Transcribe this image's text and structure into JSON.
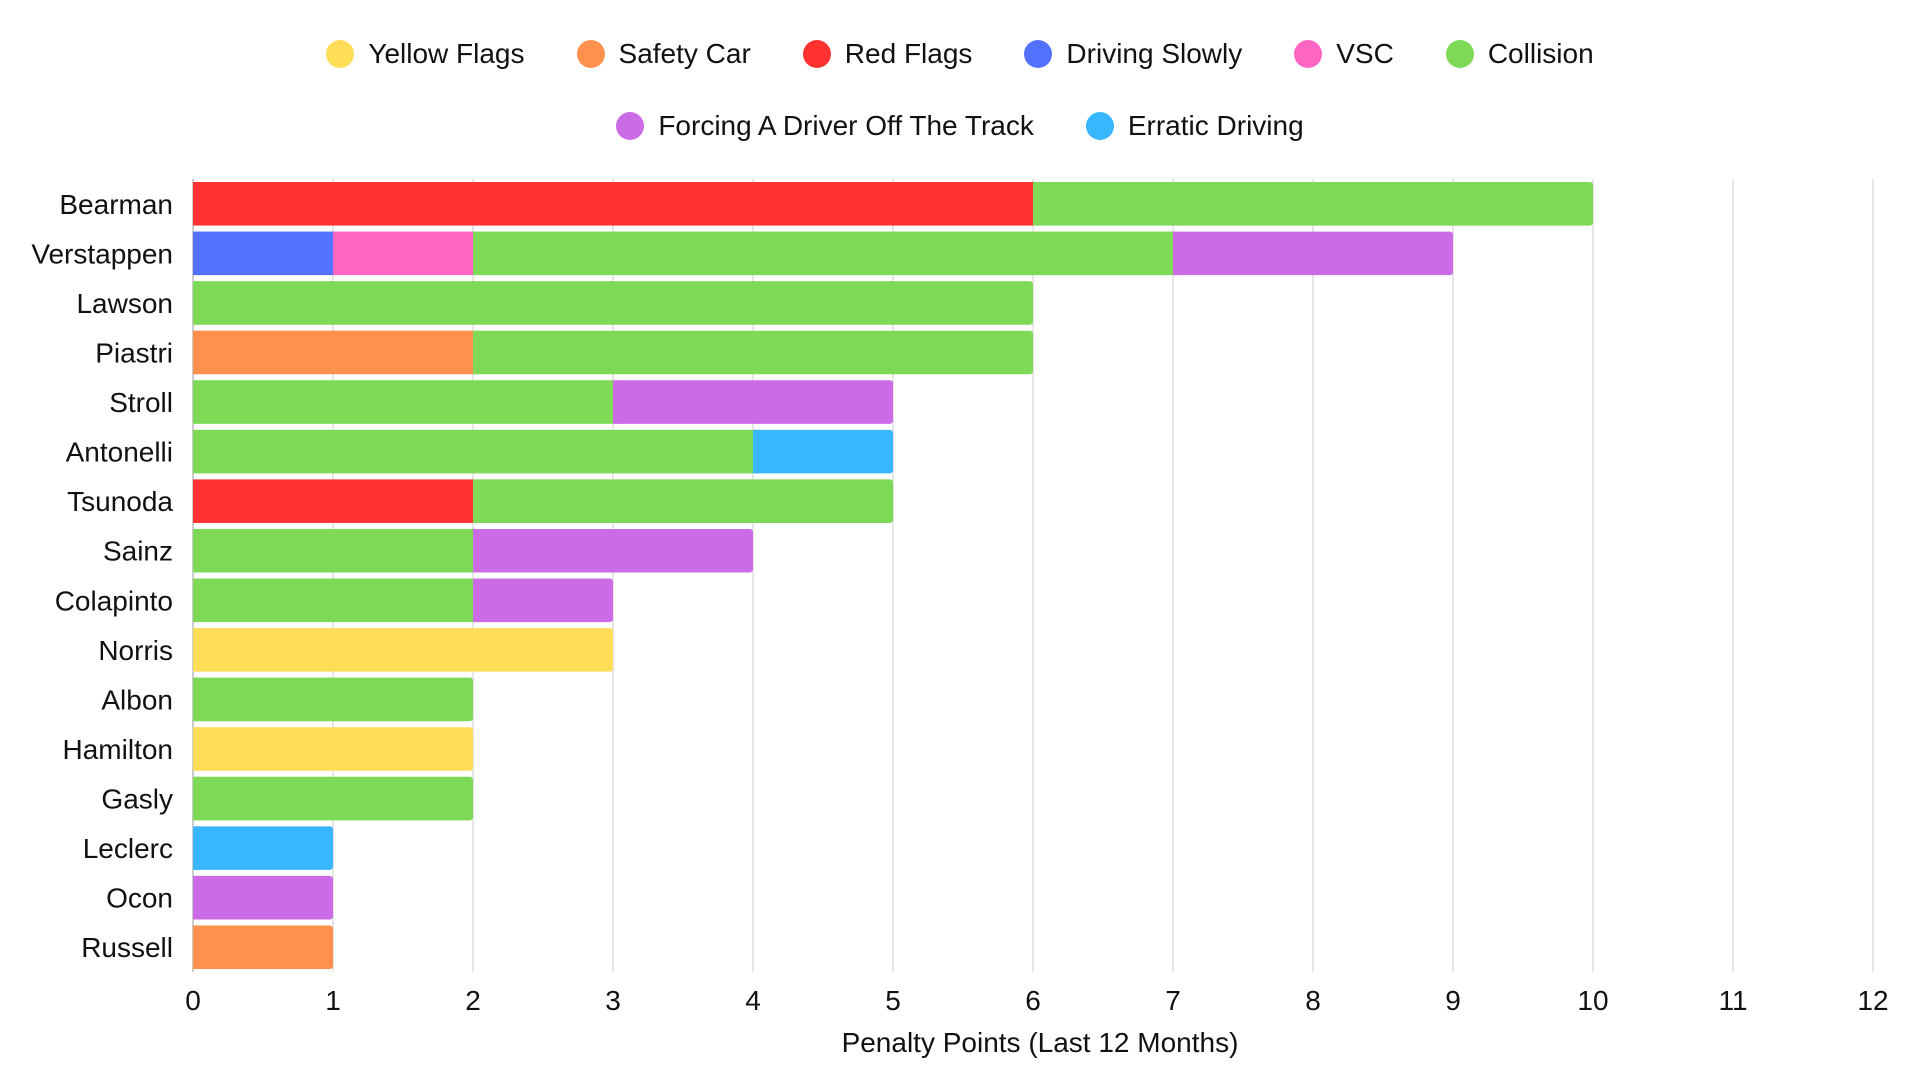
{
  "chart_data": {
    "type": "bar",
    "orientation": "horizontal",
    "stacked": true,
    "title": "",
    "xlabel": "Penalty Points (Last 12 Months)",
    "ylabel": "",
    "xlim": [
      0,
      12
    ],
    "x_ticks": [
      "0",
      "1",
      "2",
      "3",
      "4",
      "5",
      "6",
      "7",
      "8",
      "9",
      "10",
      "11",
      "12"
    ],
    "grid": true,
    "legend_position": "top-center",
    "categories": [
      "Bearman",
      "Verstappen",
      "Lawson",
      "Piastri",
      "Stroll",
      "Antonelli",
      "Tsunoda",
      "Sainz",
      "Colapinto",
      "Norris",
      "Albon",
      "Hamilton",
      "Gasly",
      "Leclerc",
      "Ocon",
      "Russell"
    ],
    "series": [
      {
        "name": "Yellow Flags",
        "color": "#FFDD57",
        "values": [
          0,
          0,
          0,
          0,
          0,
          0,
          0,
          0,
          0,
          3,
          0,
          2,
          0,
          0,
          0,
          0
        ]
      },
      {
        "name": "Safety Car",
        "color": "#FF914D",
        "values": [
          0,
          0,
          0,
          2,
          0,
          0,
          0,
          0,
          0,
          0,
          0,
          0,
          0,
          0,
          0,
          1
        ]
      },
      {
        "name": "Red Flags",
        "color": "#FF3131",
        "values": [
          6,
          0,
          0,
          0,
          0,
          0,
          2,
          0,
          0,
          0,
          0,
          0,
          0,
          0,
          0,
          0
        ]
      },
      {
        "name": "Driving Slowly",
        "color": "#5271FF",
        "values": [
          0,
          1,
          0,
          0,
          0,
          0,
          0,
          0,
          0,
          0,
          0,
          0,
          0,
          0,
          0,
          0
        ]
      },
      {
        "name": "VSC",
        "color": "#FF66C4",
        "values": [
          0,
          1,
          0,
          0,
          0,
          0,
          0,
          0,
          0,
          0,
          0,
          0,
          0,
          0,
          0,
          0
        ]
      },
      {
        "name": "Collision",
        "color": "#7ED957",
        "values": [
          4,
          5,
          6,
          4,
          3,
          4,
          3,
          2,
          2,
          0,
          2,
          0,
          2,
          0,
          0,
          0
        ]
      },
      {
        "name": "Forcing A Driver Off The Track",
        "color": "#CB6CE6",
        "values": [
          0,
          2,
          0,
          0,
          2,
          0,
          0,
          2,
          1,
          0,
          0,
          0,
          0,
          0,
          1,
          0
        ]
      },
      {
        "name": "Erratic Driving",
        "color": "#38B6FF",
        "values": [
          0,
          0,
          0,
          0,
          0,
          1,
          0,
          0,
          0,
          0,
          0,
          0,
          0,
          1,
          0,
          0
        ]
      }
    ],
    "stack_order": [
      [
        "Red Flags",
        "Collision"
      ],
      [
        "Driving Slowly",
        "VSC",
        "Collision",
        "Forcing A Driver Off The Track"
      ],
      [
        "Collision"
      ],
      [
        "Safety Car",
        "Collision"
      ],
      [
        "Collision",
        "Forcing A Driver Off The Track"
      ],
      [
        "Collision",
        "Erratic Driving"
      ],
      [
        "Red Flags",
        "Collision"
      ],
      [
        "Collision",
        "Forcing A Driver Off The Track"
      ],
      [
        "Collision",
        "Forcing A Driver Off The Track"
      ],
      [
        "Yellow Flags"
      ],
      [
        "Collision"
      ],
      [
        "Yellow Flags"
      ],
      [
        "Collision"
      ],
      [
        "Erratic Driving"
      ],
      [
        "Forcing A Driver Off The Track"
      ],
      [
        "Safety Car"
      ]
    ]
  },
  "legend": {
    "row1": [
      {
        "label": "Yellow Flags",
        "color": "#FFDD57"
      },
      {
        "label": "Safety Car",
        "color": "#FF914D"
      },
      {
        "label": "Red Flags",
        "color": "#FF3131"
      },
      {
        "label": "Driving Slowly",
        "color": "#5271FF"
      },
      {
        "label": "VSC",
        "color": "#FF66C4"
      },
      {
        "label": "Collision",
        "color": "#7ED957"
      }
    ],
    "row2": [
      {
        "label": "Forcing A Driver Off The Track",
        "color": "#CB6CE6"
      },
      {
        "label": "Erratic Driving",
        "color": "#38B6FF"
      }
    ]
  }
}
